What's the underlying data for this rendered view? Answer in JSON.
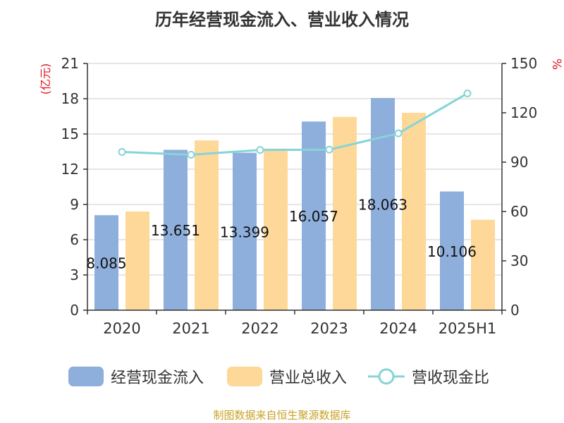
{
  "chart_data": {
    "type": "bar",
    "title": "历年经营现金流入、营业收入情况",
    "categories": [
      "2020",
      "2021",
      "2022",
      "2023",
      "2024",
      "2025H1"
    ],
    "series": [
      {
        "name": "经营现金流入",
        "kind": "bar",
        "axis": "left",
        "color": "#8eaedc",
        "values": [
          8.085,
          13.651,
          13.399,
          16.057,
          18.063,
          10.106
        ],
        "data_labels": [
          "8.085",
          "13.651",
          "13.399",
          "16.057",
          "18.063",
          "10.106"
        ]
      },
      {
        "name": "营业总收入",
        "kind": "bar",
        "axis": "left",
        "color": "#fdd898",
        "values": [
          8.4,
          14.45,
          13.75,
          16.45,
          16.8,
          7.7
        ]
      },
      {
        "name": "营收现金比",
        "kind": "line",
        "axis": "right",
        "color": "#86d4d8",
        "values": [
          96.2,
          94.5,
          97.4,
          97.6,
          107.5,
          131.8
        ]
      }
    ],
    "yaxis_left": {
      "label": "(亿元)",
      "ylim": [
        0,
        21
      ],
      "ticks": [
        0,
        3,
        6,
        9,
        12,
        15,
        18,
        21
      ]
    },
    "yaxis_right": {
      "label": "%",
      "ylim": [
        0,
        150
      ],
      "ticks": [
        0,
        30,
        60,
        90,
        120,
        150
      ]
    },
    "grid": true,
    "legend_position": "bottom"
  },
  "source": "制图数据来自恒生聚源数据库"
}
